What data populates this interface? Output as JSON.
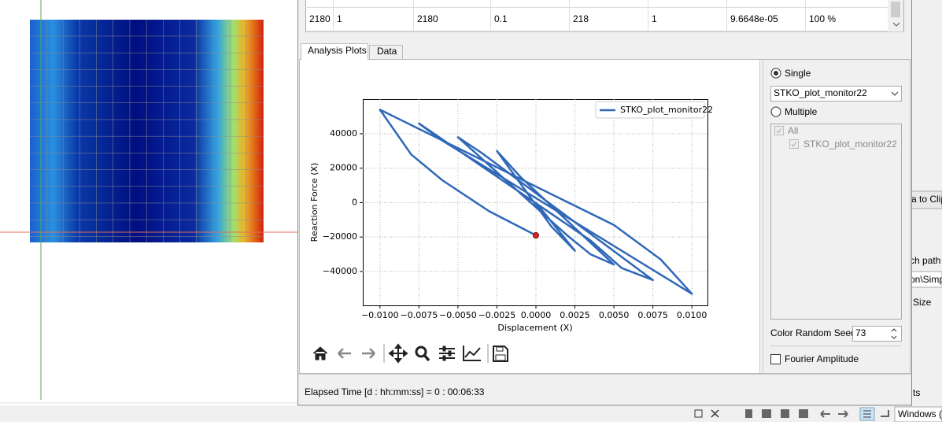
{
  "table": {
    "row": [
      "2180",
      "1",
      "2180",
      "0.1",
      "218",
      "1",
      "9.6648e-05",
      "100 %"
    ]
  },
  "tabs": [
    "Analysis Plots",
    "Data"
  ],
  "chart_data": {
    "type": "line",
    "xlabel": "Displacement (X)",
    "ylabel": "Reaction Force (X)",
    "x": [
      0,
      0.0025,
      0.001,
      -0.0025,
      -0.001,
      0.005,
      0.0035,
      0.002,
      -0.005,
      -0.0035,
      0.0075,
      0.0055,
      0.0035,
      -0.0075,
      -0.006,
      0.01,
      0.008,
      0.005,
      -0.01,
      -0.008,
      -0.006,
      -0.003,
      0
    ],
    "series": [
      {
        "name": "STKO_plot_monitor22",
        "color": "#3068b8",
        "values": [
          0,
          -28000,
          -14000,
          30000,
          15000,
          -36000,
          -30000,
          -19000,
          38000,
          29000,
          -45000,
          -38000,
          -22000,
          46000,
          36000,
          -53000,
          -33000,
          -13000,
          54000,
          28000,
          13000,
          -5000,
          -19000
        ]
      }
    ],
    "xlim": [
      -0.0111,
      0.011
    ],
    "ylim": [
      -59700,
      60100
    ],
    "xticks": [
      {
        "value": -0.01,
        "label": "−0.0100"
      },
      {
        "value": -0.0075,
        "label": "−0.0075"
      },
      {
        "value": -0.005,
        "label": "−0.0050"
      },
      {
        "value": -0.0025,
        "label": "−0.0025"
      },
      {
        "value": 0,
        "label": "0.0000"
      },
      0.0025,
      {
        "value": 0.005,
        "label": "0.0050"
      },
      0.0075,
      {
        "value": 0.01,
        "label": "0.0100"
      }
    ],
    "yticks": [
      {
        "value": -40000,
        "label": "−40000"
      },
      {
        "value": -20000,
        "label": "−20000"
      },
      0,
      20000,
      40000
    ],
    "grid": true,
    "legend": "upper right",
    "marker": {
      "x": 0,
      "y": -19000,
      "color": "#d62728"
    }
  },
  "side_panel": {
    "single": "Single",
    "dropdown": "STKO_plot_monitor22",
    "multiple": "Multiple",
    "all": "All",
    "item": "STKO_plot_monitor22",
    "seed_label": "Color Random Seed:",
    "seed": "73",
    "fourier": "Fourier Amplitude"
  },
  "status": "Elapsed Time [d : hh:mm:ss] = 0 : 00:06:33",
  "background_texts": [
    "a to Clip",
    "ch path l",
    "on\\Simpl",
    "Size",
    "ts"
  ],
  "taskbar": "Windows (C"
}
